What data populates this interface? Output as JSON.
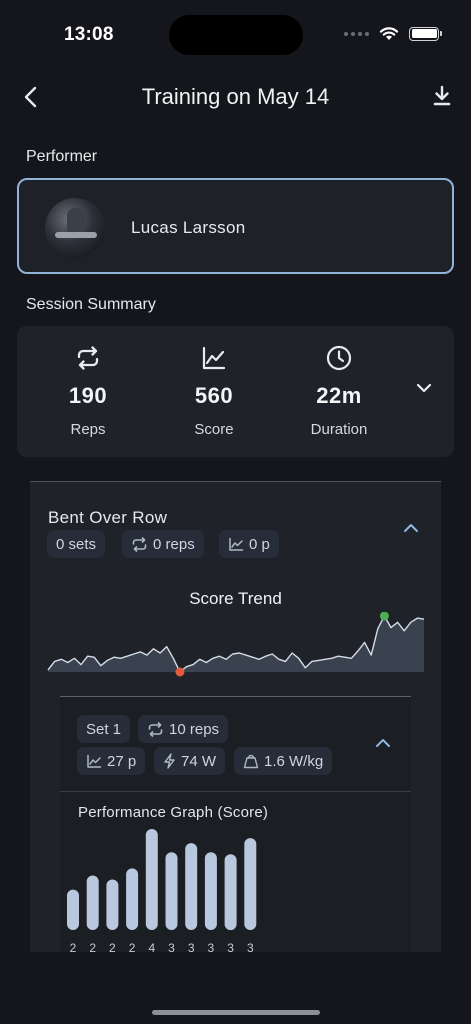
{
  "status_bar": {
    "time": "13:08"
  },
  "nav": {
    "title": "Training on May 14",
    "back_icon": "chevron-left-icon",
    "download_icon": "download-icon"
  },
  "performer": {
    "section_label": "Performer",
    "name": "Lucas Larsson"
  },
  "summary": {
    "section_label": "Session Summary",
    "stats": [
      {
        "icon": "repeat-icon",
        "value": "190",
        "label": "Reps"
      },
      {
        "icon": "trend-chart-icon",
        "value": "560",
        "label": "Score"
      },
      {
        "icon": "clock-icon",
        "value": "22m",
        "label": "Duration"
      }
    ]
  },
  "exercise": {
    "title": "Bent Over Row",
    "chips": {
      "sets": "0 sets",
      "reps": "0 reps",
      "points": "0 p"
    },
    "score_trend": {
      "title": "Score Trend",
      "min_marker_color": "#e05a3c",
      "max_marker_color": "#4caf50",
      "values": [
        2,
        10,
        12,
        9,
        13,
        7,
        15,
        14,
        6,
        11,
        14,
        13,
        15,
        17,
        19,
        16,
        22,
        18,
        24,
        13,
        0,
        5,
        7,
        12,
        9,
        13,
        15,
        12,
        17,
        18,
        16,
        14,
        12,
        15,
        17,
        12,
        10,
        18,
        13,
        4,
        10,
        11,
        12,
        13,
        15,
        14,
        13,
        20,
        28,
        16,
        41,
        53,
        42,
        47,
        39,
        47,
        51,
        50
      ]
    },
    "set": {
      "label": "Set 1",
      "reps": "10 reps",
      "points": "27 p",
      "power": "74 W",
      "power_per_kg": "1.6 W/kg"
    },
    "performance_graph": {
      "title": "Performance Graph (Score)",
      "bar_color": "#b9c8de"
    }
  },
  "chart_data": [
    {
      "type": "area",
      "title": "Score Trend",
      "y": [
        2,
        10,
        12,
        9,
        13,
        7,
        15,
        14,
        6,
        11,
        14,
        13,
        15,
        17,
        19,
        16,
        22,
        18,
        24,
        13,
        0,
        5,
        7,
        12,
        9,
        13,
        15,
        12,
        17,
        18,
        16,
        14,
        12,
        15,
        17,
        12,
        10,
        18,
        13,
        4,
        10,
        11,
        12,
        13,
        15,
        14,
        13,
        20,
        28,
        16,
        41,
        53,
        42,
        47,
        39,
        47,
        51,
        50
      ],
      "xlabel": "",
      "ylabel": "",
      "grid": false
    },
    {
      "type": "bar",
      "title": "Performance Graph (Score)",
      "categories": [
        "2",
        "2",
        "2",
        "2",
        "4",
        "3",
        "3",
        "3",
        "3",
        "3"
      ],
      "values": [
        40,
        54,
        50,
        61,
        100,
        77,
        86,
        77,
        75,
        91
      ],
      "xlabel": "",
      "ylabel": "",
      "ylim": [
        0,
        100
      ],
      "grid": false
    }
  ]
}
